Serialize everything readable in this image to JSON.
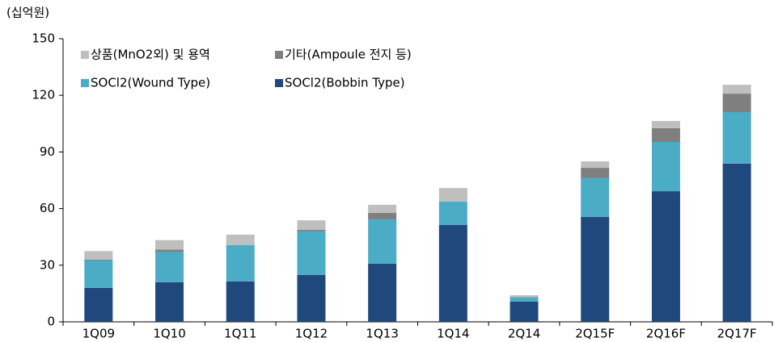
{
  "chart_data": {
    "type": "stacked_bar",
    "y_label": "(십억원)",
    "categories": [
      "1Q09",
      "1Q10",
      "1Q11",
      "1Q12",
      "1Q13",
      "1Q14",
      "2Q14",
      "2Q15F",
      "2Q16F",
      "2Q17F"
    ],
    "series": [
      {
        "name": "SOCl2(Bobbin Type)",
        "color": "#1f497d",
        "values": [
          18,
          21,
          21.4,
          24.8,
          30.8,
          51.3,
          10.7,
          55.6,
          69.2,
          83.8
        ]
      },
      {
        "name": "SOCl2(Wound Type)",
        "color": "#4bacc6",
        "values": [
          14.5,
          16,
          19.2,
          23.1,
          23.5,
          12.4,
          2.1,
          20.5,
          26.1,
          27.3
        ]
      },
      {
        "name": "기타(Ampoule 전지 등)",
        "color": "#7f7f7f",
        "values": [
          0.5,
          1.3,
          0,
          0.8,
          3.4,
          0,
          0.3,
          5.5,
          7.3,
          9.8
        ]
      },
      {
        "name": "상품(MnO2외) 및 용역",
        "color": "#bfbfbf",
        "values": [
          4.5,
          5,
          5.6,
          5.1,
          4.3,
          7.2,
          1,
          3.4,
          3.8,
          4.7
        ]
      }
    ],
    "ylim": [
      0,
      150
    ],
    "yticks": [
      0,
      30,
      60,
      90,
      120,
      150
    ]
  }
}
